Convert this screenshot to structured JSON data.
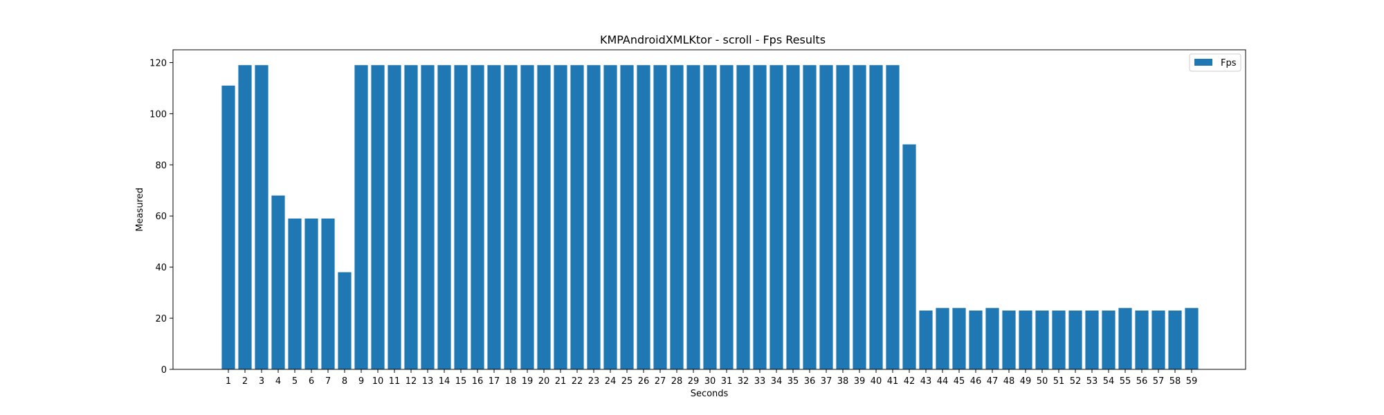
{
  "chart_data": {
    "type": "bar",
    "title": "KMPAndroidXMLKtor - scroll - Fps Results",
    "xlabel": "Seconds",
    "ylabel": "Measured",
    "ylim": [
      0,
      125
    ],
    "yticks": [
      0,
      20,
      40,
      60,
      80,
      100,
      120
    ],
    "grid": false,
    "legend_position": "top-right",
    "bar_color": "#1f77b4",
    "categories": [
      "1",
      "2",
      "3",
      "4",
      "5",
      "6",
      "7",
      "8",
      "9",
      "10",
      "11",
      "12",
      "13",
      "14",
      "15",
      "16",
      "17",
      "18",
      "19",
      "20",
      "21",
      "22",
      "23",
      "24",
      "25",
      "26",
      "27",
      "28",
      "29",
      "30",
      "31",
      "32",
      "33",
      "34",
      "35",
      "36",
      "37",
      "38",
      "39",
      "40",
      "41",
      "42",
      "43",
      "44",
      "45",
      "46",
      "47",
      "48",
      "49",
      "50",
      "51",
      "52",
      "53",
      "54",
      "55",
      "56",
      "57",
      "58",
      "59"
    ],
    "series": [
      {
        "name": "Fps",
        "values": [
          111,
          119,
          119,
          68,
          59,
          59,
          59,
          38,
          119,
          119,
          119,
          119,
          119,
          119,
          119,
          119,
          119,
          119,
          119,
          119,
          119,
          119,
          119,
          119,
          119,
          119,
          119,
          119,
          119,
          119,
          119,
          119,
          119,
          119,
          119,
          119,
          119,
          119,
          119,
          119,
          119,
          88,
          23,
          24,
          24,
          23,
          24,
          23,
          23,
          23,
          23,
          23,
          23,
          23,
          24,
          23,
          23,
          23,
          24
        ]
      }
    ]
  }
}
